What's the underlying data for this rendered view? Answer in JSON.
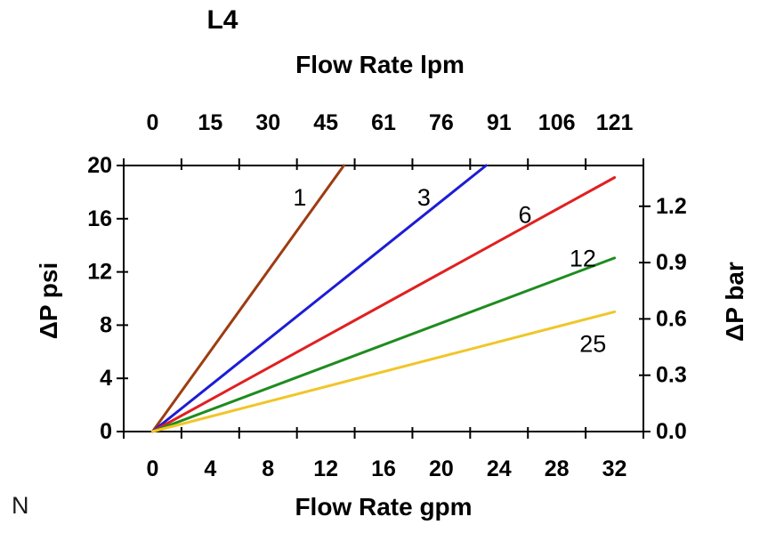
{
  "footnote": "N",
  "chart_data": {
    "type": "line",
    "title": "L4",
    "axes": {
      "top": {
        "label": "Flow Rate lpm",
        "tick_labels": [
          "0",
          "15",
          "30",
          "45",
          "61",
          "76",
          "91",
          "106",
          "121"
        ]
      },
      "bottom": {
        "label": "Flow Rate gpm",
        "tick_labels": [
          "0",
          "4",
          "8",
          "12",
          "16",
          "20",
          "24",
          "28",
          "32"
        ],
        "gpm_per_slot": 4
      },
      "left": {
        "label": "ΔP psi",
        "tick_values": [
          0,
          4,
          8,
          12,
          16,
          20
        ],
        "range": [
          0,
          20
        ]
      },
      "right": {
        "label": "ΔP bar",
        "tick_labels": [
          "0.0",
          "0.3",
          "0.6",
          "0.9",
          "1.2"
        ],
        "range": [
          0,
          1.417
        ]
      }
    },
    "grid": false,
    "legend": "inline-labels-on-curves",
    "series": [
      {
        "name": "1",
        "color": "#9E3C12",
        "points": [
          [
            0,
            0
          ],
          [
            13.25,
            20
          ]
        ],
        "label_at": [
          10.2,
          17.6
        ]
      },
      {
        "name": "3",
        "color": "#1C1CD6",
        "points": [
          [
            0,
            0
          ],
          [
            23.1,
            20
          ]
        ],
        "label_at": [
          18.8,
          17.6
        ]
      },
      {
        "name": "6",
        "color": "#E02020",
        "points": [
          [
            0,
            0
          ],
          [
            32,
            19.1
          ]
        ],
        "label_at": [
          25.8,
          16.3
        ]
      },
      {
        "name": "12",
        "color": "#1E8C1E",
        "points": [
          [
            0,
            0
          ],
          [
            32,
            13.05
          ]
        ],
        "label_at": [
          29.8,
          13.0
        ]
      },
      {
        "name": "25",
        "color": "#F0C62A",
        "points": [
          [
            0,
            0
          ],
          [
            32,
            9.0
          ]
        ],
        "label_at": [
          30.5,
          6.6
        ]
      }
    ]
  }
}
